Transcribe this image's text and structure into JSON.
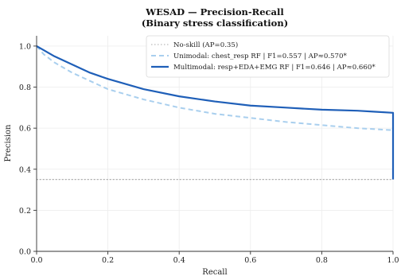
{
  "chart_data": {
    "type": "line",
    "title": "WESAD — Precision-Recall",
    "subtitle": "(Binary stress classification)",
    "xlabel": "Recall",
    "ylabel": "Precision",
    "xlim": [
      0.0,
      1.0
    ],
    "ylim": [
      0.0,
      1.05
    ],
    "xticks": [
      "0.0",
      "0.2",
      "0.4",
      "0.6",
      "0.8",
      "1.0"
    ],
    "yticks": [
      "0.0",
      "0.2",
      "0.4",
      "0.6",
      "0.8",
      "1.0"
    ],
    "grid": true,
    "legend_position": "top-right",
    "series": [
      {
        "name": "No-skill (AP=0.35)",
        "style": "dotted",
        "color": "#a8a8a8",
        "x": [
          0.0,
          1.0
        ],
        "y": [
          0.35,
          0.35
        ]
      },
      {
        "name": "Unimodal: chest_resp RF  |  F1=0.557  |  AP≈0.570*",
        "style": "dashed",
        "color": "#a9cfee",
        "x": [
          0.0,
          0.02,
          0.05,
          0.1,
          0.15,
          0.2,
          0.3,
          0.4,
          0.5,
          0.6,
          0.7,
          0.8,
          0.9,
          0.95,
          1.0
        ],
        "y": [
          1.0,
          0.96,
          0.92,
          0.87,
          0.83,
          0.79,
          0.74,
          0.7,
          0.67,
          0.65,
          0.63,
          0.615,
          0.6,
          0.595,
          0.59
        ]
      },
      {
        "name": "Multimodal: resp+EDA+EMG RF  |  F1=0.646  |  AP≈0.660*",
        "style": "solid",
        "color": "#1f5fb8",
        "x": [
          0.0,
          0.02,
          0.05,
          0.1,
          0.15,
          0.2,
          0.3,
          0.4,
          0.5,
          0.6,
          0.7,
          0.8,
          0.9,
          0.95,
          1.0,
          1.0
        ],
        "y": [
          1.0,
          0.98,
          0.95,
          0.91,
          0.87,
          0.84,
          0.79,
          0.755,
          0.73,
          0.71,
          0.7,
          0.69,
          0.685,
          0.68,
          0.675,
          0.35
        ]
      }
    ]
  }
}
